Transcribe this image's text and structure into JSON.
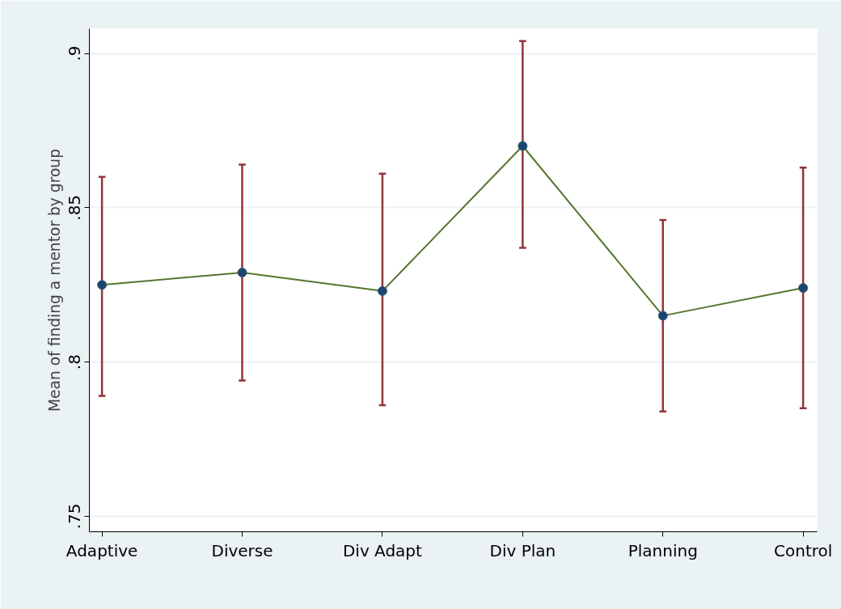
{
  "chart_data": {
    "type": "line",
    "ylabel": "Mean of finding a mentor by group",
    "categories": [
      "Adaptive",
      "Diverse",
      "Div Adapt",
      "Div Plan",
      "Planning",
      "Control"
    ],
    "series": [
      {
        "type": "scatter",
        "color": "#1a476f",
        "marker": "circle",
        "values": [
          0.825,
          0.829,
          0.823,
          0.87,
          0.815,
          0.824
        ],
        "errors": [
          [
            0.789,
            0.86
          ],
          [
            0.794,
            0.864
          ],
          [
            0.786,
            0.861
          ],
          [
            0.837,
            0.904
          ],
          [
            0.784,
            0.846
          ],
          [
            0.785,
            0.863
          ]
        ]
      },
      {
        "color": "#55752f",
        "values": [
          0.825,
          0.829,
          0.823,
          0.87,
          0.815,
          0.824
        ]
      }
    ],
    "ylim": [
      0.745,
      0.908
    ],
    "yticks": [
      {
        "value": 0.75,
        "label": ".75"
      },
      {
        "value": 0.8,
        "label": ".8"
      },
      {
        "value": 0.85,
        "label": ".85"
      },
      {
        "value": 0.9,
        "label": ".9"
      }
    ],
    "grid": "y"
  }
}
